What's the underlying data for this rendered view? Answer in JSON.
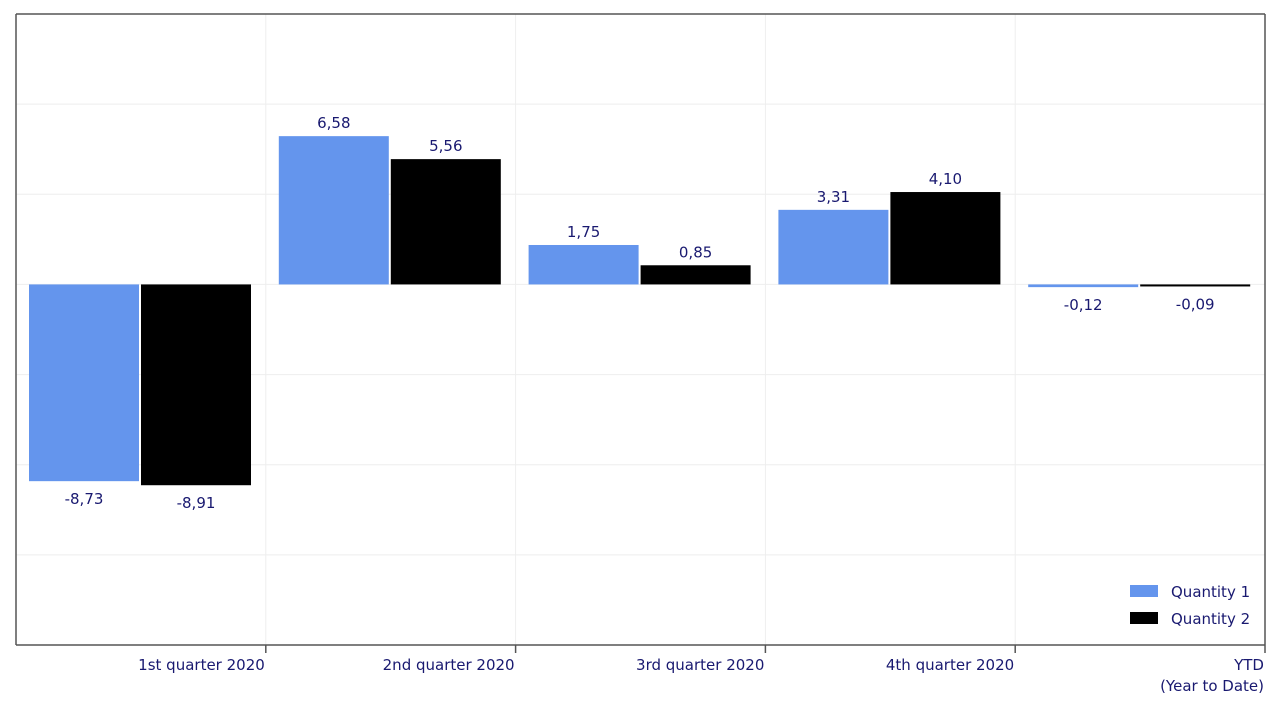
{
  "chart_data": {
    "type": "bar",
    "categories": [
      [
        "1st quarter 2020"
      ],
      [
        "2nd quarter 2020"
      ],
      [
        "3rd quarter 2020"
      ],
      [
        "4th quarter 2020"
      ],
      [
        "YTD",
        "(Year to Date)"
      ]
    ],
    "series": [
      {
        "name": "Quantity 1",
        "color": "#6495ED",
        "values": [
          -8.73,
          6.58,
          1.75,
          3.31,
          -0.12
        ],
        "labels": [
          "-8,73",
          "6,58",
          "1,75",
          "3,31",
          "-0,12"
        ]
      },
      {
        "name": "Quantity 2",
        "color": "#000000",
        "values": [
          -8.91,
          5.56,
          0.85,
          4.1,
          -0.09
        ],
        "labels": [
          "-8,91",
          "5,56",
          "0,85",
          "4,10",
          "-0,09"
        ]
      }
    ],
    "ylim": [
      -16.0,
      12.0
    ],
    "grid": true,
    "legend_position": "bottom-right",
    "text_color": "#191970",
    "grid_color": "#eeeeee",
    "frame_color": "#555555"
  }
}
